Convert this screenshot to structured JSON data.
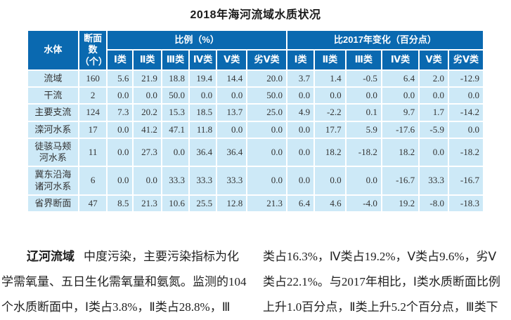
{
  "title": "2018年海河流域水质状况",
  "table": {
    "header": {
      "water_body": "水体",
      "section_count_line1": "断面数",
      "section_count_line2": "（个）",
      "proportion_group": "比例（%）",
      "change_group": "比2017年变化（百分点）",
      "classes": [
        "Ⅰ类",
        "Ⅱ类",
        "Ⅲ类",
        "Ⅳ类",
        "Ⅴ类",
        "劣Ⅴ类"
      ]
    },
    "rows": [
      {
        "name": "流域",
        "count": "160",
        "proportion": [
          "5.6",
          "21.9",
          "18.8",
          "19.4",
          "14.4",
          "20.0"
        ],
        "change": [
          "3.7",
          "1.4",
          "-0.5",
          "6.4",
          "2.0",
          "-12.9"
        ]
      },
      {
        "name": "干流",
        "count": "2",
        "proportion": [
          "0.0",
          "0.0",
          "50.0",
          "0.0",
          "0.0",
          "50.0"
        ],
        "change": [
          "0.0",
          "0.0",
          "0.0",
          "0.0",
          "0.0",
          "0.0"
        ]
      },
      {
        "name": "主要支流",
        "count": "124",
        "proportion": [
          "7.3",
          "20.2",
          "15.3",
          "18.5",
          "13.7",
          "25.0"
        ],
        "change": [
          "4.9",
          "-2.2",
          "0.1",
          "9.7",
          "1.7",
          "-14.2"
        ]
      },
      {
        "name": "滦河水系",
        "count": "17",
        "proportion": [
          "0.0",
          "41.2",
          "47.1",
          "11.8",
          "0.0",
          "0.0"
        ],
        "change": [
          "0.0",
          "17.7",
          "5.9",
          "-17.6",
          "-5.9",
          "0.0"
        ]
      },
      {
        "name": "徒骇马颊河水系",
        "count": "11",
        "proportion": [
          "0.0",
          "27.3",
          "0.0",
          "36.4",
          "36.4",
          "0.0"
        ],
        "change": [
          "0.0",
          "18.2",
          "-18.2",
          "18.2",
          "0.0",
          "-18.2"
        ]
      },
      {
        "name": "冀东沿海诸河水系",
        "count": "6",
        "proportion": [
          "0.0",
          "0.0",
          "33.3",
          "33.3",
          "33.3",
          "0.0"
        ],
        "change": [
          "0.0",
          "0.0",
          "0.0",
          "-16.7",
          "33.3",
          "-16.7"
        ]
      },
      {
        "name": "省界断面",
        "count": "47",
        "proportion": [
          "8.5",
          "21.3",
          "10.6",
          "25.5",
          "12.8",
          "21.3"
        ],
        "change": [
          "6.4",
          "4.6",
          "-4.0",
          "19.2",
          "-8.0",
          "-18.3"
        ]
      }
    ]
  },
  "paragraph": {
    "left_column": {
      "lead": "辽河流域",
      "lines": [
        "中度污染，主要污染指标为化",
        "学需氧量、五日生化需氧量和氨氮。监测的104",
        "个水质断面中，Ⅰ类占3.8%，Ⅱ类占28.8%，Ⅲ"
      ]
    },
    "right_column": {
      "lines": [
        "类占16.3%，Ⅳ类占19.2%，Ⅴ类占9.6%，劣Ⅴ",
        "类占22.1%。与2017年相比，Ⅰ类水质断面比例",
        "上升1.0百分点，Ⅱ类上升5.2个百分点，Ⅲ类下"
      ]
    }
  },
  "colors": {
    "header_bg": "#0a69b0",
    "row_bg": "#cde9f7",
    "grid": "#ffffff",
    "header_text": "#ffffff",
    "body_text": "#333333"
  }
}
